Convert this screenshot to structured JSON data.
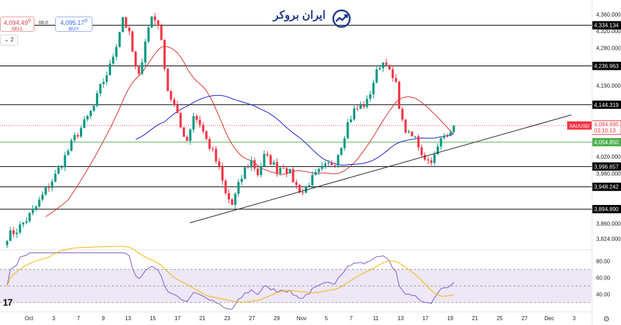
{
  "trade": {
    "sell_price": "4,094.49",
    "sell_sup": "0",
    "sell_label": "SELL",
    "spread": "68.0",
    "buy_price": "4,095.17",
    "buy_sup": "0",
    "buy_label": "BUY",
    "interval_control": "2"
  },
  "brand": {
    "name": "ایران بروکر",
    "icon": "chart-arrow-icon"
  },
  "platform": {
    "icon": "tradingview-logo-icon",
    "text": "17"
  },
  "colors": {
    "up": "#089981",
    "down": "#f23645",
    "ma_fast": "#d32f2f",
    "ma_slow": "#1a1acb",
    "rsi": "#7e57c2",
    "rsi_ma": "#f4b400",
    "rsi_band": "#ede7f6"
  },
  "chart_data": [
    {
      "type": "candlestick",
      "symbol": "XAUUSD",
      "last_price": "4,094.695",
      "countdown": "03:10:13",
      "ylim": [
        3806,
        4378
      ],
      "y_ticks": [
        4360,
        4320,
        4280,
        4190,
        4020,
        3980,
        3860,
        3824
      ],
      "y_tick_labels": [
        "4,360.000",
        "4,320.000",
        "4,280.000",
        "4,190.000",
        "4,020.000",
        "3,980.000",
        "3,860.000",
        "3,824.000"
      ],
      "x_ticks": [
        "Oct",
        "3",
        "7",
        "9",
        "13",
        "15",
        "17",
        "21",
        "23",
        "27",
        "29",
        "Nov",
        "5",
        "7",
        "11",
        "13",
        "17",
        "19",
        "21",
        "25",
        "27",
        "Dec",
        "3"
      ],
      "horizontal_levels": [
        {
          "value": 4334.134,
          "label": "4,334.134",
          "color": "#000000"
        },
        {
          "value": 4236.963,
          "label": "4,236.963",
          "color": "#000000"
        },
        {
          "value": 4144.319,
          "label": "4,144.319",
          "color": "#000000"
        },
        {
          "value": 4054.85,
          "label": "4,054.850",
          "color": "#4caf50"
        },
        {
          "value": 3996.657,
          "label": "3,996.657",
          "color": "#000000"
        },
        {
          "value": 3948.242,
          "label": "3,948.242",
          "color": "#000000"
        },
        {
          "value": 3894.89,
          "label": "3,894.890",
          "color": "#000000"
        }
      ],
      "trendline": [
        {
          "x": 0,
          "y": 3862
        },
        {
          "x": 1,
          "y": 4120
        }
      ],
      "close_path": [
        [
          0,
          3830
        ],
        [
          3,
          3845
        ],
        [
          6,
          3870
        ],
        [
          9,
          3900
        ],
        [
          12,
          3940
        ],
        [
          15,
          3975
        ],
        [
          18,
          4020
        ],
        [
          21,
          4065
        ],
        [
          24,
          4100
        ],
        [
          27,
          4140
        ],
        [
          29,
          4185
        ],
        [
          32,
          4235
        ],
        [
          34,
          4290
        ],
        [
          36,
          4355
        ],
        [
          38,
          4310
        ],
        [
          40,
          4230
        ],
        [
          41,
          4210
        ],
        [
          43,
          4300
        ],
        [
          45,
          4355
        ],
        [
          47,
          4340
        ],
        [
          49,
          4240
        ],
        [
          50,
          4180
        ],
        [
          52,
          4140
        ],
        [
          54,
          4090
        ],
        [
          56,
          4060
        ],
        [
          58,
          4120
        ],
        [
          60,
          4100
        ],
        [
          62,
          4060
        ],
        [
          64,
          4030
        ],
        [
          66,
          3990
        ],
        [
          68,
          3930
        ],
        [
          70,
          3905
        ],
        [
          72,
          3950
        ],
        [
          74,
          3990
        ],
        [
          76,
          4010
        ],
        [
          78,
          3980
        ],
        [
          80,
          4020
        ],
        [
          82,
          4010
        ],
        [
          84,
          3990
        ],
        [
          86,
          4000
        ],
        [
          88,
          3980
        ],
        [
          90,
          3950
        ],
        [
          92,
          3935
        ],
        [
          94,
          3960
        ],
        [
          96,
          3975
        ],
        [
          98,
          3990
        ],
        [
          100,
          4000
        ],
        [
          102,
          4010
        ],
        [
          104,
          4050
        ],
        [
          106,
          4100
        ],
        [
          108,
          4130
        ],
        [
          110,
          4140
        ],
        [
          112,
          4150
        ],
        [
          114,
          4200
        ],
        [
          116,
          4240
        ],
        [
          118,
          4250
        ],
        [
          119,
          4220
        ],
        [
          121,
          4190
        ],
        [
          123,
          4100
        ],
        [
          125,
          4070
        ],
        [
          127,
          4065
        ],
        [
          129,
          4030
        ],
        [
          131,
          4010
        ],
        [
          133,
          4020
        ],
        [
          135,
          4060
        ],
        [
          137,
          4080
        ],
        [
          139,
          4095
        ]
      ],
      "total_bars": 140,
      "ma_fast_name": "",
      "ma_slow_name": ""
    },
    {
      "type": "line",
      "panel": "oscillator",
      "ylim": [
        22,
        92
      ],
      "y_ticks": [
        80,
        60,
        40
      ],
      "band": [
        30,
        70
      ],
      "midline": 50
    }
  ]
}
